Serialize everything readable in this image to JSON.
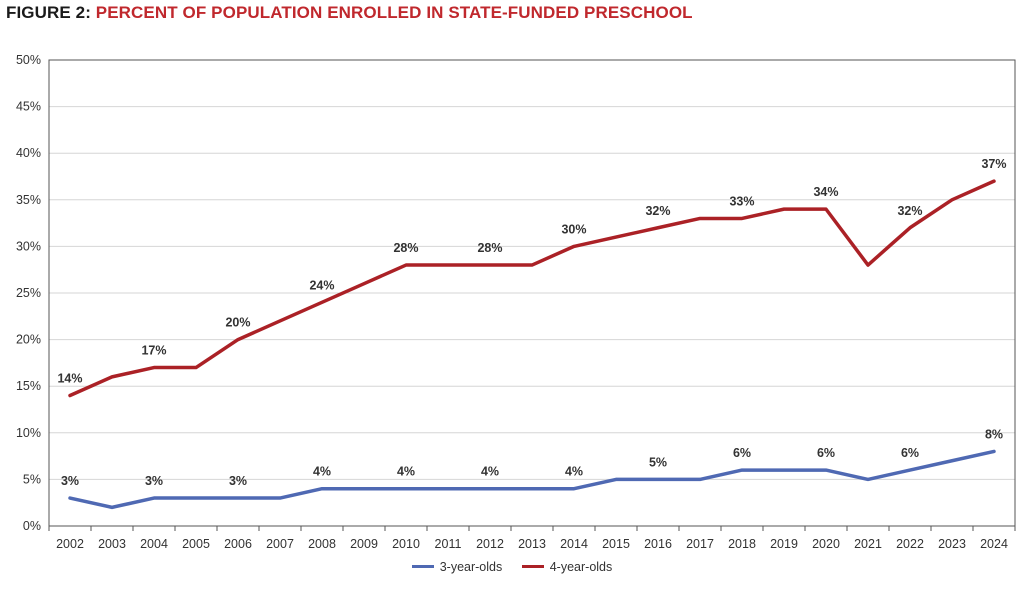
{
  "figure": {
    "prefix": "FIGURE 2: ",
    "title": "PERCENT OF POPULATION ENROLLED IN STATE-FUNDED PRESCHOOL"
  },
  "legend": {
    "items": [
      {
        "label": "3-year-olds",
        "color": "#4f69b3"
      },
      {
        "label": "4-year-olds",
        "color": "#ab2126"
      }
    ]
  },
  "chart_data": {
    "type": "line",
    "title": "PERCENT OF POPULATION ENROLLED IN STATE-FUNDED PRESCHOOL",
    "xlabel": "",
    "ylabel": "",
    "categories": [
      "2002",
      "2003",
      "2004",
      "2005",
      "2006",
      "2007",
      "2008",
      "2009",
      "2010",
      "2011",
      "2012",
      "2013",
      "2014",
      "2015",
      "2016",
      "2017",
      "2018",
      "2019",
      "2020",
      "2021",
      "2022",
      "2023",
      "2024"
    ],
    "ylim": [
      0,
      50
    ],
    "yticks": [
      "0%",
      "5%",
      "10%",
      "15%",
      "20%",
      "25%",
      "30%",
      "35%",
      "40%",
      "45%",
      "50%"
    ],
    "grid": true,
    "legend_position": "bottom",
    "series": [
      {
        "name": "3-year-olds",
        "color": "#4f69b3",
        "values": [
          3,
          2,
          3,
          3,
          3,
          3,
          4,
          4,
          4,
          4,
          4,
          4,
          4,
          5,
          5,
          5,
          6,
          6,
          6,
          5,
          6,
          7,
          8
        ],
        "labels": [
          "3%",
          null,
          "3%",
          null,
          "3%",
          null,
          "4%",
          null,
          "4%",
          null,
          "4%",
          null,
          "4%",
          null,
          "5%",
          null,
          "6%",
          null,
          "6%",
          null,
          "6%",
          null,
          "8%"
        ]
      },
      {
        "name": "4-year-olds",
        "color": "#ab2126",
        "values": [
          14,
          16,
          17,
          17,
          20,
          22,
          24,
          26,
          28,
          28,
          28,
          28,
          30,
          31,
          32,
          33,
          33,
          34,
          34,
          28,
          32,
          35,
          37
        ],
        "labels": [
          "14%",
          null,
          "17%",
          null,
          "20%",
          null,
          "24%",
          null,
          "28%",
          null,
          "28%",
          null,
          "30%",
          null,
          "32%",
          null,
          "33%",
          null,
          "34%",
          null,
          "32%",
          null,
          "37%"
        ]
      }
    ]
  }
}
